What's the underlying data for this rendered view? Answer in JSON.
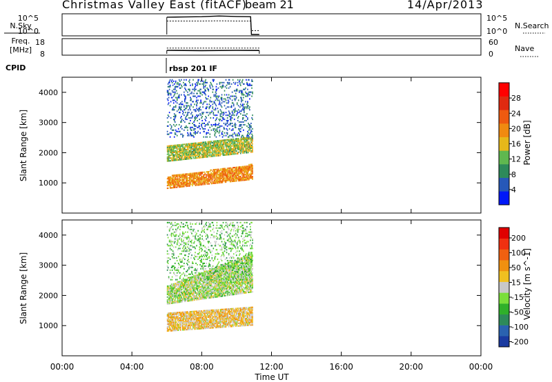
{
  "header": {
    "title": "Christmas Valley East (fitACF)",
    "beam": "beam 21",
    "date": "14/Apr/2013"
  },
  "panels": {
    "nsky_label": "N.Sky",
    "nsky_ticks_left": [
      "10^5",
      "10^0"
    ],
    "nsearch_label": "N.Search",
    "nsearch_ticks_right": [
      "10^5",
      "10^0"
    ],
    "freq_label_top": "Freq.",
    "freq_label_bottom": "[MHz]",
    "freq_ticks": [
      "18",
      "8"
    ],
    "nave_label": "Nave",
    "nave_ticks": [
      "60",
      "0"
    ],
    "cpid_label": "CPID",
    "cpid_value": "rbsp 201 IF"
  },
  "axes": {
    "ylabel": "Slant Range [km]",
    "xlabel": "Time UT",
    "yticks": [
      "1000",
      "2000",
      "3000",
      "4000"
    ],
    "xticks": [
      "00:00",
      "04:00",
      "08:00",
      "12:00",
      "16:00",
      "20:00",
      "00:00"
    ]
  },
  "colorbars": {
    "power": {
      "label": "Power [dB]",
      "ticks": [
        "4",
        "8",
        "12",
        "16",
        "20",
        "24",
        "28"
      ],
      "colors": [
        "#0018f8",
        "#2658b8",
        "#2d8a5a",
        "#5fb84f",
        "#e6b81a",
        "#f08a10",
        "#ee5a10",
        "#e02a10",
        "#ff0000"
      ]
    },
    "velocity": {
      "label": "Velocity [m s^-1]",
      "ticks": [
        "200",
        "100",
        "50",
        "15",
        "-15",
        "-50",
        "-100",
        "-200"
      ],
      "colors": [
        "#1a3aa0",
        "#2a62b0",
        "#2d8a5a",
        "#2fb02a",
        "#7adf3a",
        "#c8c8c8",
        "#f0c020",
        "#f09010",
        "#f06010",
        "#f03010",
        "#e00000"
      ]
    }
  },
  "chart_data": [
    {
      "type": "line",
      "title": "N.Sky / N.Search",
      "xlim": [
        0,
        24
      ],
      "yscale": "log",
      "ylim": [
        1,
        100000
      ],
      "series": [
        {
          "name": "N.Sky",
          "x": [
            6.0,
            7.0,
            8.0,
            9.0,
            10.0,
            10.8,
            10.85,
            11.3
          ],
          "y": [
            30000,
            35000,
            40000,
            60000,
            45000,
            40000,
            1,
            1
          ]
        },
        {
          "name": "N.Search",
          "x": [
            6.0,
            7.0,
            8.0,
            9.0,
            10.0,
            10.8,
            10.85,
            11.3
          ],
          "y": [
            3000,
            3000,
            3000,
            3500,
            3000,
            3000,
            10,
            10
          ]
        }
      ]
    },
    {
      "type": "line",
      "title": "Freq. / Nave",
      "xlim": [
        0,
        24
      ],
      "ylim": [
        8,
        18
      ],
      "series": [
        {
          "name": "Freq.",
          "x": [
            6.0,
            8.0,
            10.0,
            11.3
          ],
          "y": [
            10.5,
            10.3,
            10.5,
            10.4
          ]
        },
        {
          "name": "Nave",
          "x": [
            6.0,
            8.0,
            10.0,
            11.3
          ],
          "y": [
            25,
            25,
            25,
            25
          ]
        }
      ]
    },
    {
      "type": "heatmap",
      "title": "Power",
      "xlim": [
        0,
        24
      ],
      "ylim": [
        0,
        4500
      ],
      "zlim": [
        0,
        32
      ],
      "regions": [
        {
          "t0": 6.0,
          "t1": 10.9,
          "r0_start": 800,
          "r0_end": 1200,
          "r1_start": 1100,
          "r1_end": 1600,
          "z": 20
        },
        {
          "t0": 6.0,
          "t1": 10.9,
          "r0_start": 1700,
          "r0_end": 2200,
          "r1_start": 2000,
          "r1_end": 2500,
          "z": 14
        },
        {
          "t0": 6.0,
          "t1": 10.9,
          "r0_start": 2500,
          "r0_end": 4400,
          "r1_start": 2500,
          "r1_end": 4400,
          "z": 6
        }
      ]
    },
    {
      "type": "heatmap",
      "title": "Velocity",
      "xlim": [
        0,
        24
      ],
      "ylim": [
        0,
        4500
      ],
      "zlim": [
        -250,
        250
      ],
      "regions": [
        {
          "t0": 6.0,
          "t1": 10.9,
          "r0_start": 800,
          "r0_end": 1400,
          "r1_start": 1000,
          "r1_end": 1600,
          "z": 40
        },
        {
          "t0": 6.0,
          "t1": 10.9,
          "r0_start": 1700,
          "r0_end": 2300,
          "r1_start": 2100,
          "r1_end": 3400,
          "z": -20
        },
        {
          "t0": 6.0,
          "t1": 10.9,
          "r0_start": 2500,
          "r0_end": 4400,
          "r1_start": 2500,
          "r1_end": 4400,
          "z": -60
        }
      ]
    }
  ]
}
